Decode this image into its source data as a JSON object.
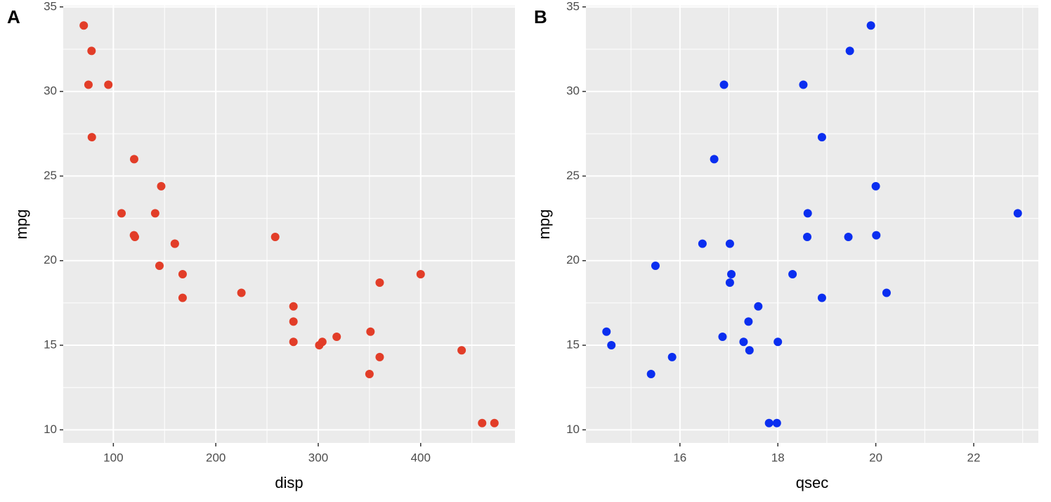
{
  "chart_data": [
    {
      "type": "scatter",
      "tag": "A",
      "xlabel": "disp",
      "ylabel": "mpg",
      "color": "#E23D28",
      "x": [
        160,
        160,
        108,
        258,
        360,
        225,
        360,
        146.7,
        140.8,
        167.6,
        167.6,
        275.8,
        275.8,
        275.8,
        472,
        460,
        440,
        78.7,
        75.7,
        71.1,
        120.1,
        318,
        304,
        350,
        400,
        79,
        120.3,
        95.1,
        351,
        145,
        301,
        121
      ],
      "y": [
        21.0,
        21.0,
        22.8,
        21.4,
        18.7,
        18.1,
        14.3,
        24.4,
        22.8,
        19.2,
        17.8,
        16.4,
        17.3,
        15.2,
        10.4,
        10.4,
        14.7,
        32.4,
        30.4,
        33.9,
        21.5,
        15.5,
        15.2,
        13.3,
        19.2,
        27.3,
        26.0,
        30.4,
        15.8,
        19.7,
        15.0,
        21.4
      ],
      "xlim": [
        51.055,
        492.045
      ],
      "ylim": [
        9.225,
        35.075
      ],
      "xticks": [
        100,
        200,
        300,
        400
      ],
      "yticks": [
        10,
        15,
        20,
        25,
        30,
        35
      ],
      "xminorticks": [
        150,
        250,
        350,
        450
      ],
      "yminorticks": [
        12.5,
        17.5,
        22.5,
        27.5,
        32.5
      ],
      "grid": true
    },
    {
      "type": "scatter",
      "tag": "B",
      "xlabel": "qsec",
      "ylabel": "mpg",
      "color": "#0A2EF0",
      "x": [
        16.46,
        17.02,
        18.61,
        19.44,
        17.02,
        20.22,
        15.84,
        20.0,
        22.9,
        18.3,
        18.9,
        17.4,
        17.6,
        18.0,
        17.98,
        17.82,
        17.42,
        19.47,
        18.52,
        19.9,
        20.01,
        16.87,
        17.3,
        15.41,
        17.05,
        18.9,
        16.7,
        16.9,
        14.5,
        15.5,
        14.6,
        18.6
      ],
      "y": [
        21.0,
        21.0,
        22.8,
        21.4,
        18.7,
        18.1,
        14.3,
        24.4,
        22.8,
        19.2,
        17.8,
        16.4,
        17.3,
        15.2,
        10.4,
        10.4,
        14.7,
        32.4,
        30.4,
        33.9,
        21.5,
        15.5,
        15.2,
        13.3,
        19.2,
        27.3,
        26.0,
        30.4,
        15.8,
        19.7,
        15.0,
        21.4
      ],
      "xlim": [
        14.08,
        23.32
      ],
      "ylim": [
        9.225,
        35.075
      ],
      "xticks": [
        16,
        18,
        20,
        22
      ],
      "yticks": [
        10,
        15,
        20,
        25,
        30,
        35
      ],
      "xminorticks": [
        15,
        17,
        19,
        21,
        23
      ],
      "yminorticks": [
        12.5,
        17.5,
        22.5,
        27.5,
        32.5
      ],
      "grid": true
    }
  ]
}
